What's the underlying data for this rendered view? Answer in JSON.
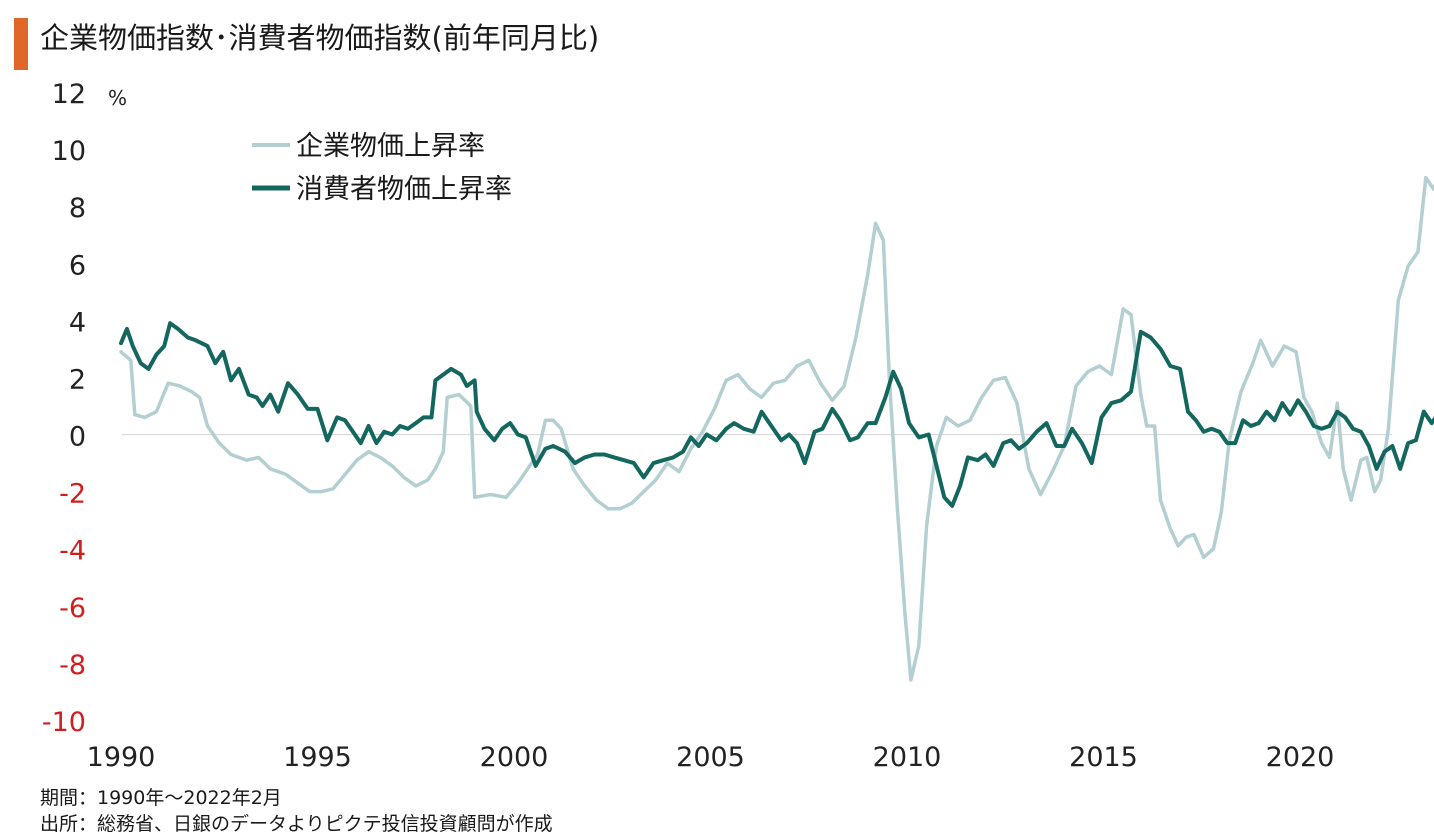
{
  "title": "企業物価指数･消費者物価指数(前年同月比)",
  "footer": {
    "period": "期間：1990年～2022年2月",
    "source": "出所：総務省、日銀のデータよりピクテ投信投資顧問が作成"
  },
  "colors": {
    "accent_bar": "#e0662a",
    "corporate": "#b3cfd1",
    "consumer": "#14675f",
    "negative_tick": "#d11f1f",
    "positive_tick": "#222222"
  },
  "chart_data": {
    "type": "line",
    "unit_label": "%",
    "ylim": [
      -10,
      12
    ],
    "yticks": [
      12,
      10,
      8,
      6,
      4,
      2,
      0,
      -2,
      -4,
      -6,
      -8,
      -10
    ],
    "xlim": [
      1990,
      2022.2
    ],
    "xticks": [
      "1990",
      "1995",
      "2000",
      "2005",
      "2010",
      "2015",
      "2020"
    ],
    "zero_line": true,
    "legend_position": "top-left",
    "series": [
      {
        "name": "企業物価上昇率",
        "color": "#b3cfd1",
        "points": [
          [
            1990.0,
            2.9
          ],
          [
            1990.25,
            2.6
          ],
          [
            1990.35,
            0.7
          ],
          [
            1990.6,
            0.6
          ],
          [
            1990.9,
            0.8
          ],
          [
            1991.2,
            1.8
          ],
          [
            1991.5,
            1.7
          ],
          [
            1991.8,
            1.5
          ],
          [
            1992.0,
            1.3
          ],
          [
            1992.2,
            0.3
          ],
          [
            1992.5,
            -0.3
          ],
          [
            1992.8,
            -0.7
          ],
          [
            1993.2,
            -0.9
          ],
          [
            1993.5,
            -0.8
          ],
          [
            1993.8,
            -1.2
          ],
          [
            1994.2,
            -1.4
          ],
          [
            1994.5,
            -1.7
          ],
          [
            1994.8,
            -2.0
          ],
          [
            1995.1,
            -2.0
          ],
          [
            1995.4,
            -1.9
          ],
          [
            1995.7,
            -1.4
          ],
          [
            1996.0,
            -0.9
          ],
          [
            1996.3,
            -0.6
          ],
          [
            1996.6,
            -0.8
          ],
          [
            1996.9,
            -1.1
          ],
          [
            1997.2,
            -1.5
          ],
          [
            1997.5,
            -1.8
          ],
          [
            1997.8,
            -1.6
          ],
          [
            1998.0,
            -1.2
          ],
          [
            1998.2,
            -0.6
          ],
          [
            1998.3,
            1.3
          ],
          [
            1998.6,
            1.4
          ],
          [
            1998.9,
            1.0
          ],
          [
            1999.0,
            -2.2
          ],
          [
            1999.4,
            -2.1
          ],
          [
            1999.8,
            -2.2
          ],
          [
            2000.1,
            -1.7
          ],
          [
            2000.4,
            -1.1
          ],
          [
            2000.6,
            -0.7
          ],
          [
            2000.8,
            0.5
          ],
          [
            2001.0,
            0.5
          ],
          [
            2001.2,
            0.2
          ],
          [
            2001.5,
            -1.2
          ],
          [
            2001.8,
            -1.8
          ],
          [
            2002.1,
            -2.3
          ],
          [
            2002.4,
            -2.6
          ],
          [
            2002.7,
            -2.6
          ],
          [
            2003.0,
            -2.4
          ],
          [
            2003.3,
            -2.0
          ],
          [
            2003.6,
            -1.6
          ],
          [
            2003.9,
            -1.0
          ],
          [
            2004.2,
            -1.3
          ],
          [
            2004.5,
            -0.5
          ],
          [
            2004.8,
            0.1
          ],
          [
            2005.1,
            0.9
          ],
          [
            2005.4,
            1.9
          ],
          [
            2005.7,
            2.1
          ],
          [
            2006.0,
            1.6
          ],
          [
            2006.3,
            1.3
          ],
          [
            2006.6,
            1.8
          ],
          [
            2006.9,
            1.9
          ],
          [
            2007.2,
            2.4
          ],
          [
            2007.5,
            2.6
          ],
          [
            2007.8,
            1.8
          ],
          [
            2008.1,
            1.2
          ],
          [
            2008.4,
            1.7
          ],
          [
            2008.7,
            3.4
          ],
          [
            2009.0,
            5.6
          ],
          [
            2009.2,
            7.4
          ],
          [
            2009.4,
            6.8
          ],
          [
            2009.55,
            2.0
          ],
          [
            2009.75,
            -2.5
          ],
          [
            2009.95,
            -6.3
          ],
          [
            2010.1,
            -8.6
          ],
          [
            2010.3,
            -7.4
          ],
          [
            2010.5,
            -3.2
          ],
          [
            2010.75,
            -0.4
          ],
          [
            2011.0,
            0.6
          ],
          [
            2011.3,
            0.3
          ],
          [
            2011.6,
            0.5
          ],
          [
            2011.9,
            1.3
          ],
          [
            2012.2,
            1.9
          ],
          [
            2012.5,
            2.0
          ],
          [
            2012.8,
            1.1
          ],
          [
            2013.1,
            -1.2
          ],
          [
            2013.4,
            -2.1
          ],
          [
            2013.7,
            -1.3
          ],
          [
            2014.0,
            -0.4
          ],
          [
            2014.3,
            1.7
          ],
          [
            2014.6,
            2.2
          ],
          [
            2014.9,
            2.4
          ],
          [
            2015.2,
            2.1
          ],
          [
            2015.5,
            4.4
          ],
          [
            2015.7,
            4.2
          ],
          [
            2015.95,
            1.4
          ],
          [
            2016.1,
            0.3
          ],
          [
            2016.3,
            0.3
          ],
          [
            2016.45,
            -2.3
          ],
          [
            2016.7,
            -3.3
          ],
          [
            2016.9,
            -3.9
          ],
          [
            2017.1,
            -3.6
          ],
          [
            2017.3,
            -3.5
          ],
          [
            2017.55,
            -4.3
          ],
          [
            2017.8,
            -4.0
          ],
          [
            2018.0,
            -2.7
          ],
          [
            2018.2,
            -0.2
          ],
          [
            2018.5,
            1.5
          ],
          [
            2018.8,
            2.5
          ],
          [
            2019.0,
            3.3
          ],
          [
            2019.3,
            2.4
          ],
          [
            2019.6,
            3.1
          ],
          [
            2019.9,
            2.9
          ],
          [
            2020.1,
            1.3
          ],
          [
            2020.3,
            0.8
          ],
          [
            2020.55,
            -0.3
          ],
          [
            2020.75,
            -0.8
          ],
          [
            2020.95,
            1.1
          ],
          [
            2021.1,
            -1.2
          ],
          [
            2021.3,
            -2.3
          ],
          [
            2021.55,
            -0.9
          ],
          [
            2021.7,
            -0.8
          ],
          [
            2021.9,
            -2.0
          ],
          [
            2022.05,
            -1.6
          ],
          [
            2022.25,
            0.2
          ],
          [
            2022.5,
            4.7
          ],
          [
            2022.75,
            5.9
          ],
          [
            2023.0,
            6.4
          ],
          [
            2023.2,
            9.0
          ],
          [
            2023.4,
            8.6
          ],
          [
            2023.6,
            9.3
          ]
        ]
      },
      {
        "name": "消費者物価上昇率",
        "color": "#14675f",
        "points": [
          [
            1990.0,
            3.2
          ],
          [
            1990.15,
            3.7
          ],
          [
            1990.3,
            3.1
          ],
          [
            1990.5,
            2.5
          ],
          [
            1990.7,
            2.3
          ],
          [
            1990.9,
            2.8
          ],
          [
            1991.1,
            3.1
          ],
          [
            1991.25,
            3.9
          ],
          [
            1991.45,
            3.7
          ],
          [
            1991.7,
            3.4
          ],
          [
            1991.9,
            3.3
          ],
          [
            1992.2,
            3.1
          ],
          [
            1992.4,
            2.5
          ],
          [
            1992.6,
            2.9
          ],
          [
            1992.8,
            1.9
          ],
          [
            1993.0,
            2.3
          ],
          [
            1993.25,
            1.4
          ],
          [
            1993.45,
            1.3
          ],
          [
            1993.6,
            1.0
          ],
          [
            1993.8,
            1.4
          ],
          [
            1994.0,
            0.8
          ],
          [
            1994.25,
            1.8
          ],
          [
            1994.5,
            1.4
          ],
          [
            1994.75,
            0.9
          ],
          [
            1995.0,
            0.9
          ],
          [
            1995.25,
            -0.2
          ],
          [
            1995.5,
            0.6
          ],
          [
            1995.7,
            0.5
          ],
          [
            1995.9,
            0.1
          ],
          [
            1996.1,
            -0.3
          ],
          [
            1996.3,
            0.3
          ],
          [
            1996.5,
            -0.3
          ],
          [
            1996.7,
            0.1
          ],
          [
            1996.9,
            0.0
          ],
          [
            1997.1,
            0.3
          ],
          [
            1997.3,
            0.2
          ],
          [
            1997.5,
            0.4
          ],
          [
            1997.7,
            0.6
          ],
          [
            1997.9,
            0.6
          ],
          [
            1998.0,
            1.9
          ],
          [
            1998.2,
            2.1
          ],
          [
            1998.4,
            2.3
          ],
          [
            1998.65,
            2.1
          ],
          [
            1998.8,
            1.7
          ],
          [
            1999.0,
            1.9
          ],
          [
            1999.05,
            0.8
          ],
          [
            1999.25,
            0.2
          ],
          [
            1999.5,
            -0.2
          ],
          [
            1999.7,
            0.2
          ],
          [
            1999.9,
            0.4
          ],
          [
            2000.1,
            0.0
          ],
          [
            2000.3,
            -0.1
          ],
          [
            2000.55,
            -1.1
          ],
          [
            2000.8,
            -0.5
          ],
          [
            2001.0,
            -0.4
          ],
          [
            2001.3,
            -0.6
          ],
          [
            2001.55,
            -1.0
          ],
          [
            2001.8,
            -0.8
          ],
          [
            2002.05,
            -0.7
          ],
          [
            2002.3,
            -0.7
          ],
          [
            2002.55,
            -0.8
          ],
          [
            2002.8,
            -0.9
          ],
          [
            2003.05,
            -1.0
          ],
          [
            2003.3,
            -1.5
          ],
          [
            2003.55,
            -1.0
          ],
          [
            2003.8,
            -0.9
          ],
          [
            2004.05,
            -0.8
          ],
          [
            2004.3,
            -0.6
          ],
          [
            2004.5,
            -0.1
          ],
          [
            2004.7,
            -0.4
          ],
          [
            2004.9,
            0.0
          ],
          [
            2005.15,
            -0.2
          ],
          [
            2005.4,
            0.2
          ],
          [
            2005.6,
            0.4
          ],
          [
            2005.85,
            0.2
          ],
          [
            2006.1,
            0.1
          ],
          [
            2006.3,
            0.8
          ],
          [
            2006.55,
            0.3
          ],
          [
            2006.8,
            -0.2
          ],
          [
            2007.0,
            0.0
          ],
          [
            2007.2,
            -0.3
          ],
          [
            2007.4,
            -1.0
          ],
          [
            2007.65,
            0.1
          ],
          [
            2007.85,
            0.2
          ],
          [
            2008.1,
            0.9
          ],
          [
            2008.3,
            0.5
          ],
          [
            2008.55,
            -0.2
          ],
          [
            2008.75,
            -0.1
          ],
          [
            2009.0,
            0.4
          ],
          [
            2009.2,
            0.4
          ],
          [
            2009.45,
            1.3
          ],
          [
            2009.65,
            2.2
          ],
          [
            2009.85,
            1.6
          ],
          [
            2010.05,
            0.4
          ],
          [
            2010.3,
            -0.1
          ],
          [
            2010.55,
            0.0
          ],
          [
            2010.75,
            -1.1
          ],
          [
            2010.95,
            -2.2
          ],
          [
            2011.15,
            -2.5
          ],
          [
            2011.35,
            -1.8
          ],
          [
            2011.55,
            -0.8
          ],
          [
            2011.8,
            -0.9
          ],
          [
            2012.0,
            -0.7
          ],
          [
            2012.2,
            -1.1
          ],
          [
            2012.45,
            -0.3
          ],
          [
            2012.65,
            -0.2
          ],
          [
            2012.85,
            -0.5
          ],
          [
            2013.05,
            -0.3
          ],
          [
            2013.3,
            0.1
          ],
          [
            2013.55,
            0.4
          ],
          [
            2013.8,
            -0.4
          ],
          [
            2014.0,
            -0.4
          ],
          [
            2014.2,
            0.2
          ],
          [
            2014.45,
            -0.3
          ],
          [
            2014.7,
            -1.0
          ],
          [
            2014.95,
            0.6
          ],
          [
            2015.2,
            1.1
          ],
          [
            2015.45,
            1.2
          ],
          [
            2015.7,
            1.5
          ],
          [
            2015.95,
            3.6
          ],
          [
            2016.2,
            3.4
          ],
          [
            2016.45,
            3.0
          ],
          [
            2016.7,
            2.4
          ],
          [
            2016.95,
            2.3
          ],
          [
            2017.15,
            0.8
          ],
          [
            2017.35,
            0.5
          ],
          [
            2017.55,
            0.1
          ],
          [
            2017.75,
            0.2
          ],
          [
            2017.95,
            0.1
          ],
          [
            2018.15,
            -0.3
          ],
          [
            2018.35,
            -0.3
          ],
          [
            2018.55,
            0.5
          ],
          [
            2018.75,
            0.3
          ],
          [
            2018.95,
            0.4
          ],
          [
            2019.15,
            0.8
          ],
          [
            2019.35,
            0.5
          ],
          [
            2019.55,
            1.1
          ],
          [
            2019.75,
            0.7
          ],
          [
            2019.95,
            1.2
          ],
          [
            2020.15,
            0.8
          ],
          [
            2020.35,
            0.3
          ],
          [
            2020.55,
            0.2
          ],
          [
            2020.75,
            0.3
          ],
          [
            2020.95,
            0.8
          ],
          [
            2021.15,
            0.6
          ],
          [
            2021.35,
            0.2
          ],
          [
            2021.55,
            0.1
          ],
          [
            2021.75,
            -0.4
          ],
          [
            2021.95,
            -1.2
          ],
          [
            2022.15,
            -0.6
          ],
          [
            2022.35,
            -0.4
          ],
          [
            2022.55,
            -1.2
          ],
          [
            2022.75,
            -0.3
          ],
          [
            2022.95,
            -0.2
          ],
          [
            2023.15,
            0.8
          ],
          [
            2023.35,
            0.4
          ],
          [
            2023.55,
            0.8
          ]
        ]
      }
    ]
  }
}
